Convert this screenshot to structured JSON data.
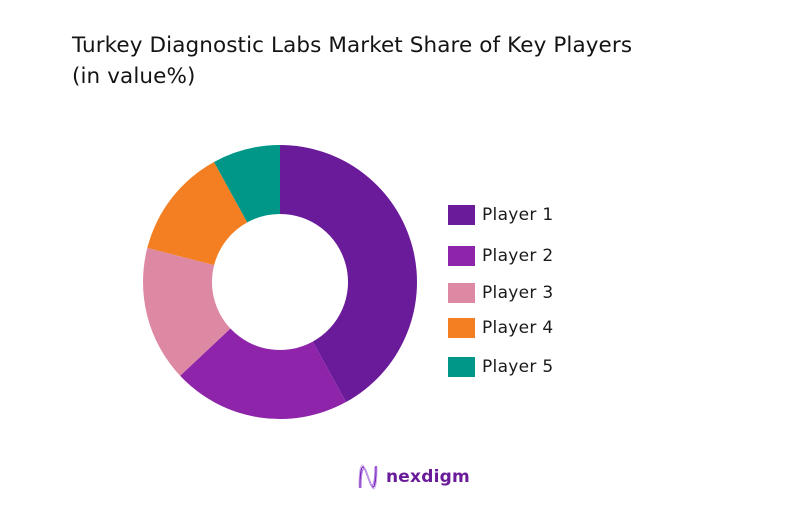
{
  "title": {
    "line1": "Turkey Diagnostic Labs Market Share of Key Players",
    "line2": "(in value%)"
  },
  "legend": {
    "items": [
      {
        "label": "Player 1",
        "color": "#6a1b9a"
      },
      {
        "label": "Player 2",
        "color": "#8e24aa"
      },
      {
        "label": "Player 3",
        "color": "#de89a3"
      },
      {
        "label": "Player 4",
        "color": "#f47f22"
      },
      {
        "label": "Player 5",
        "color": "#009688"
      }
    ]
  },
  "logo": {
    "text": "nexdigm",
    "icon": "nexdigm-wave-icon",
    "color": "#6a1b9a"
  },
  "chart_data": {
    "type": "pie",
    "subtype": "donut",
    "title": "Turkey Diagnostic Labs Market Share of Key Players (in value%)",
    "categories": [
      "Player 1",
      "Player 2",
      "Player 3",
      "Player 4",
      "Player 5"
    ],
    "values": [
      42,
      21,
      16,
      13,
      8
    ],
    "colors": [
      "#6a1b9a",
      "#8e24aa",
      "#de89a3",
      "#f47f22",
      "#009688"
    ],
    "start_angle_deg": 0,
    "direction": "clockwise",
    "legend_position": "right",
    "unit": "%"
  }
}
